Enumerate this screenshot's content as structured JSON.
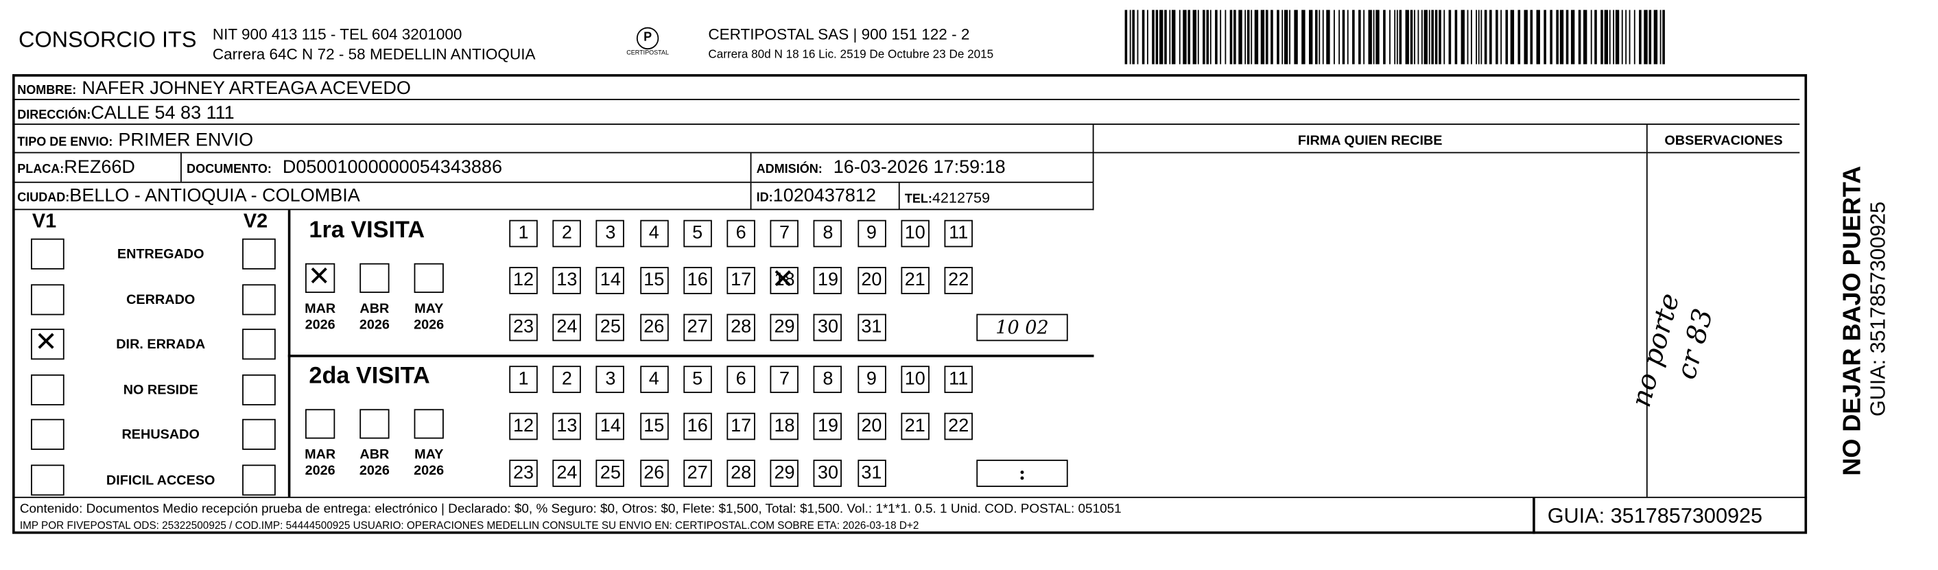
{
  "header": {
    "company": "CONSORCIO ITS",
    "nit_line": "NIT 900 413 115 - TEL 604 3201000",
    "address_line": "Carrera 64C N 72 - 58 MEDELLIN ANTIOQUIA",
    "logo_text": "CERTIPOSTAL",
    "carrier_line": "CERTIPOSTAL SAS | 900 151 122 - 2",
    "license_line": "Carrera 80d N 18 16  Lic. 2519 De Octubre 23 De 2015"
  },
  "fields": {
    "nombre_label": "NOMBRE:",
    "nombre": "NAFER JOHNEY ARTEAGA ACEVEDO",
    "direccion_label": "DIRECCIÓN:",
    "direccion": "CALLE 54   83 111",
    "tipo_label": "TIPO DE ENVIO:",
    "tipo": "PRIMER ENVIO",
    "placa_label": "PLACA:",
    "placa": "REZ66D",
    "documento_label": "DOCUMENTO:",
    "documento": "D05001000000054343886",
    "admision_label": "ADMISIÓN:",
    "admision": "16-03-2026 17:59:18",
    "ciudad_label": "CIUDAD:",
    "ciudad": "BELLO - ANTIOQUIA - COLOMBIA",
    "id_label": "ID:",
    "id": "1020437812",
    "tel_label": "TEL:",
    "tel": "4212759"
  },
  "firma_header": "FIRMA QUIEN RECIBE",
  "observaciones_header": "OBSERVACIONES",
  "observaciones_handwritten": [
    "no porte",
    "cr 83"
  ],
  "status": {
    "v1_label": "V1",
    "v2_label": "V2",
    "options": [
      {
        "label": "ENTREGADO",
        "v1": false,
        "v2": false
      },
      {
        "label": "CERRADO",
        "v1": false,
        "v2": false
      },
      {
        "label": "DIR. ERRADA",
        "v1": true,
        "v2": false
      },
      {
        "label": "NO RESIDE",
        "v1": false,
        "v2": false
      },
      {
        "label": "REHUSADO",
        "v1": false,
        "v2": false
      },
      {
        "label": "DIFICIL ACCESO",
        "v1": false,
        "v2": false
      }
    ]
  },
  "visits": [
    {
      "title": "1ra VISITA",
      "months": [
        {
          "m": "MAR",
          "y": "2026",
          "checked": true
        },
        {
          "m": "ABR",
          "y": "2026",
          "checked": false
        },
        {
          "m": "MAY",
          "y": "2026",
          "checked": false
        }
      ],
      "marked_day": 18,
      "time": "10 02"
    },
    {
      "title": "2da VISITA",
      "months": [
        {
          "m": "MAR",
          "y": "2026",
          "checked": false
        },
        {
          "m": "ABR",
          "y": "2026",
          "checked": false
        },
        {
          "m": "MAY",
          "y": "2026",
          "checked": false
        }
      ],
      "marked_day": null,
      "time": ":"
    }
  ],
  "footer": {
    "line1": "Contenido: Documentos Medio recepción prueba de entrega: electrónico | Declarado: $0, % Seguro: $0, Otros: $0, Flete: $1,500, Total: $1,500. Vol.: 1*1*1. 0.5. 1 Unid. COD. POSTAL: 051051",
    "line2": "IMP POR FIVEPOSTAL ODS: 25322500925 / COD.IMP: 54444500925 USUARIO: OPERACIONES MEDELLIN CONSULTE SU ENVIO EN: CERTIPOSTAL.COM SOBRE ETA: 2026-03-18 D+2",
    "guia": "GUIA: 3517857300925"
  },
  "side": {
    "warning": "NO DEJAR BAJO PUERTA",
    "guia": "GUIA: 3517857300925"
  }
}
